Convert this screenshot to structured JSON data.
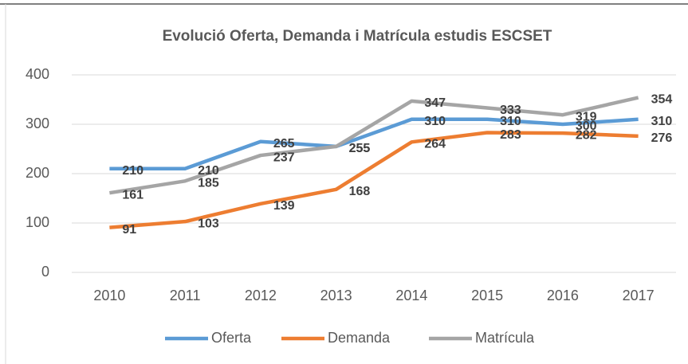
{
  "chart_data": {
    "type": "line",
    "title": "Evolució Oferta, Demanda i Matrícula estudis ESCSET",
    "categories": [
      "2010",
      "2011",
      "2012",
      "2013",
      "2014",
      "2015",
      "2016",
      "2017"
    ],
    "series": [
      {
        "name": "Oferta",
        "color": "#5b9bd5",
        "values": [
          210,
          210,
          265,
          255,
          310,
          310,
          300,
          310
        ]
      },
      {
        "name": "Demanda",
        "color": "#ed7d31",
        "values": [
          91,
          103,
          139,
          168,
          264,
          283,
          282,
          276
        ]
      },
      {
        "name": "Matrícula",
        "color": "#a5a5a5",
        "values": [
          161,
          185,
          237,
          255,
          347,
          333,
          319,
          354
        ]
      }
    ],
    "ylim": [
      0,
      400
    ],
    "yticks": [
      0,
      100,
      200,
      300,
      400
    ],
    "grid": true,
    "legend": "bottom"
  }
}
